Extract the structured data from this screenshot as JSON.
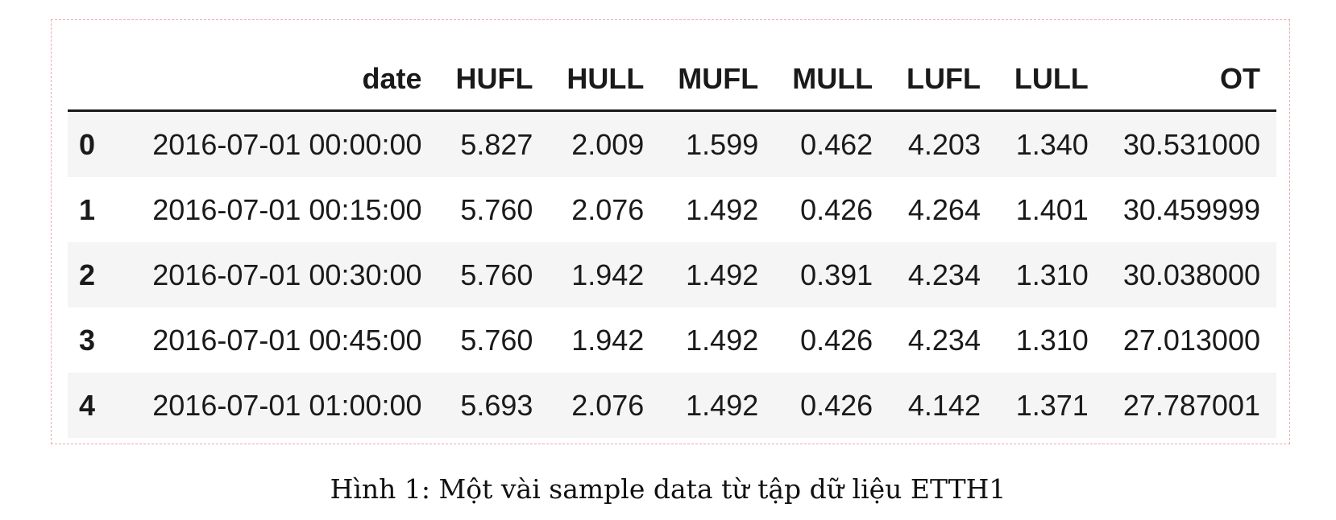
{
  "table": {
    "headers": [
      "",
      "date",
      "HUFL",
      "HULL",
      "MUFL",
      "MULL",
      "LUFL",
      "LULL",
      "OT"
    ],
    "rows": [
      [
        "0",
        "2016-07-01 00:00:00",
        "5.827",
        "2.009",
        "1.599",
        "0.462",
        "4.203",
        "1.340",
        "30.531000"
      ],
      [
        "1",
        "2016-07-01 00:15:00",
        "5.760",
        "2.076",
        "1.492",
        "0.426",
        "4.264",
        "1.401",
        "30.459999"
      ],
      [
        "2",
        "2016-07-01 00:30:00",
        "5.760",
        "1.942",
        "1.492",
        "0.391",
        "4.234",
        "1.310",
        "30.038000"
      ],
      [
        "3",
        "2016-07-01 00:45:00",
        "5.760",
        "1.942",
        "1.492",
        "0.426",
        "4.234",
        "1.310",
        "27.013000"
      ],
      [
        "4",
        "2016-07-01 01:00:00",
        "5.693",
        "2.076",
        "1.492",
        "0.426",
        "4.142",
        "1.371",
        "27.787001"
      ]
    ]
  },
  "caption": "Hình 1: Một vài sample data từ tập dữ liệu ETTH1",
  "colors": {
    "frame_border": "#f1a8ae",
    "stripe": "#f5f5f5",
    "text": "#1a1a1a"
  }
}
